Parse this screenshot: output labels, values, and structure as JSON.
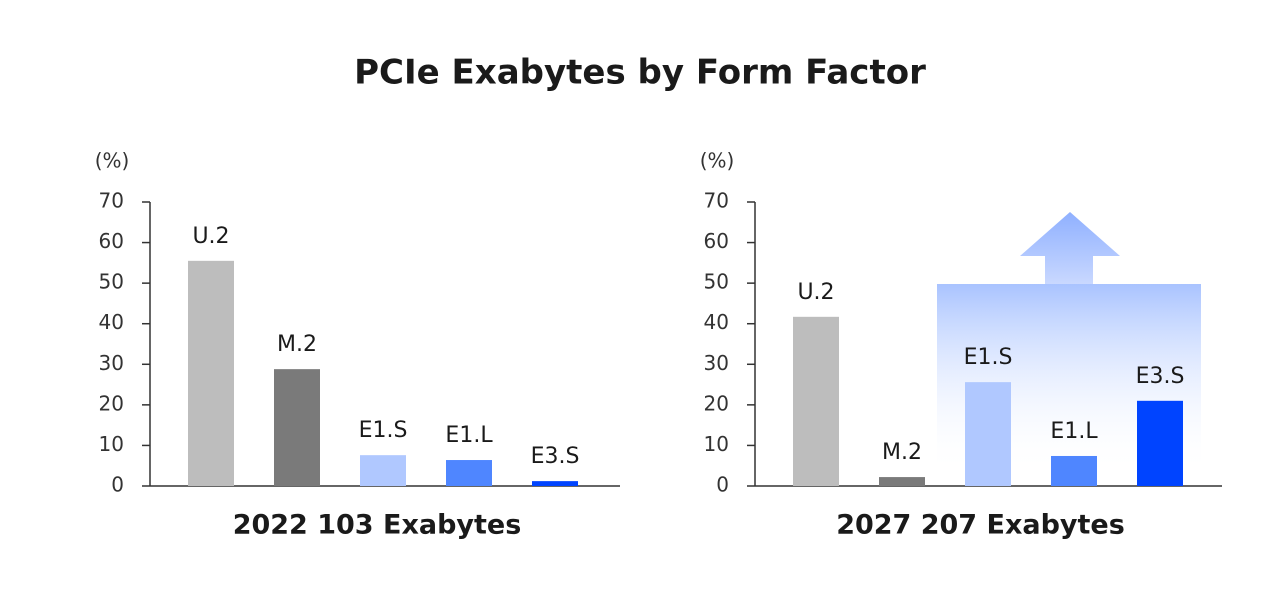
{
  "title": "PCIe Exabytes by Form Factor",
  "chart_data": [
    {
      "type": "bar",
      "xlabel": "2022 103 Exabytes",
      "ylabel": "(%)",
      "categories": [
        "U.2",
        "M.2",
        "E1.S",
        "E1.L",
        "E3.S"
      ],
      "values": [
        55.5,
        28.8,
        7.6,
        6.4,
        1.2
      ],
      "colors": [
        "#bdbdbd",
        "#7a7a7a",
        "#b0c8ff",
        "#4f86ff",
        "#0044ff"
      ],
      "ylim": [
        0,
        70
      ],
      "yticks": [
        0,
        10,
        20,
        30,
        40,
        50,
        60,
        70
      ]
    },
    {
      "type": "bar",
      "xlabel": "2027 207 Exabytes",
      "ylabel": "(%)",
      "categories": [
        "U.2",
        "M.2",
        "E1.S",
        "E1.L",
        "E3.S"
      ],
      "values": [
        41.7,
        2.2,
        25.6,
        7.4,
        21.0
      ],
      "colors": [
        "#bdbdbd",
        "#7a7a7a",
        "#b0c8ff",
        "#4f86ff",
        "#0044ff"
      ],
      "ylim": [
        0,
        70
      ],
      "yticks": [
        0,
        10,
        20,
        30,
        40,
        50,
        60,
        70
      ]
    }
  ]
}
